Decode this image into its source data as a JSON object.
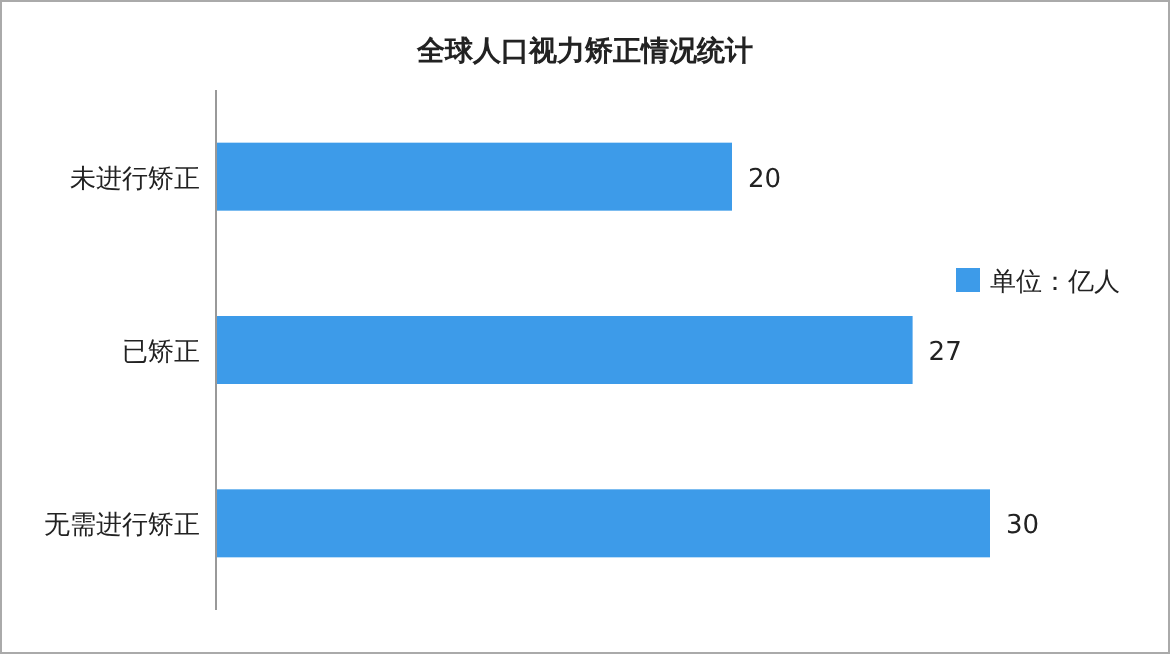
{
  "chart_data": {
    "type": "bar",
    "orientation": "horizontal",
    "title": "全球人口视力矫正情况统计",
    "categories": [
      "未进行矫正",
      "已矫正",
      "无需进行矫正"
    ],
    "series": [
      {
        "name": "单位：亿人",
        "color": "#3d9be9",
        "values": [
          20,
          27,
          30
        ]
      }
    ],
    "data_labels": true,
    "legend": "right"
  }
}
